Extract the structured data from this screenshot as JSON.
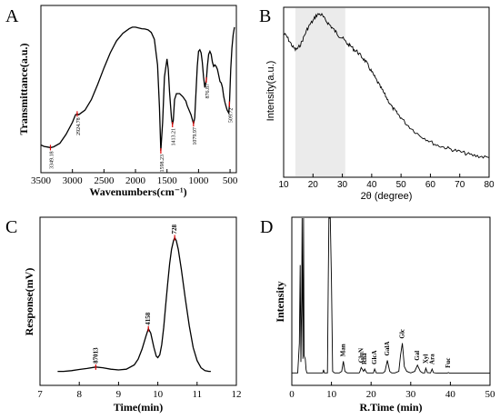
{
  "chart_data": [
    {
      "panel": "A",
      "type": "line",
      "xlabel": "Wavenumbers(cm⁻¹)",
      "ylabel": "Transmittance(a.u.)",
      "xlim": [
        3500,
        400
      ],
      "x_ticks": [
        3500,
        3000,
        2500,
        2000,
        1500,
        1000,
        500
      ],
      "x": [
        3550,
        3450,
        3400,
        3349,
        3300,
        3200,
        3100,
        3000,
        2950,
        2924,
        2900,
        2800,
        2700,
        2600,
        2500,
        2400,
        2300,
        2200,
        2100,
        2050,
        2000,
        1950,
        1900,
        1850,
        1800,
        1750,
        1700,
        1650,
        1620,
        1598,
        1570,
        1540,
        1500,
        1480,
        1460,
        1430,
        1413,
        1400,
        1380,
        1350,
        1300,
        1250,
        1200,
        1180,
        1150,
        1120,
        1100,
        1079,
        1060,
        1040,
        1020,
        1000,
        980,
        960,
        940,
        920,
        900,
        876,
        860,
        840,
        820,
        800,
        780,
        760,
        740,
        720,
        700,
        680,
        660,
        640,
        620,
        600,
        580,
        560,
        545,
        520,
        509,
        490,
        470,
        450,
        430
      ],
      "y": [
        10,
        9,
        8.6,
        8.2,
        8.7,
        11,
        17,
        25,
        30,
        30.5,
        30,
        33,
        40,
        50,
        61,
        71,
        79,
        84,
        87,
        88,
        88,
        87.5,
        87,
        86.8,
        86.2,
        84.5,
        80,
        63,
        35,
        6,
        25,
        55,
        67,
        60,
        45,
        28,
        23.5,
        26,
        40,
        44,
        44,
        42,
        39,
        36,
        33,
        30,
        27,
        24,
        28,
        45,
        62,
        72,
        73,
        71,
        65,
        55,
        48,
        53,
        62,
        70,
        72,
        70,
        65,
        62,
        63,
        62,
        60,
        56,
        52,
        51,
        48,
        42,
        38,
        35,
        33,
        31,
        37,
        60,
        74,
        83,
        88
      ],
      "peaks": [
        {
          "x": 3349.18,
          "y": 8.2,
          "label": "3349.18"
        },
        {
          "x": 2924.78,
          "y": 30.5,
          "label": "2924.78"
        },
        {
          "x": 1598.23,
          "y": 6,
          "label": "1598.23"
        },
        {
          "x": 1413.21,
          "y": 23.5,
          "label": "1413.21"
        },
        {
          "x": 1079.97,
          "y": 24,
          "label": "1079.97"
        },
        {
          "x": 876.87,
          "y": 53,
          "label": "876.87"
        },
        {
          "x": 509.72,
          "y": 37,
          "label": "509.72"
        }
      ]
    },
    {
      "panel": "B",
      "type": "line",
      "xlabel": "2θ (degree)",
      "ylabel": "Intensity(a.u.)",
      "xlim": [
        10,
        80
      ],
      "x_ticks": [
        10,
        20,
        30,
        40,
        50,
        60,
        70,
        80
      ],
      "shaded_region": [
        14,
        31
      ],
      "x": [
        10,
        11,
        12,
        13,
        14,
        15,
        16,
        17,
        18,
        19,
        20,
        21,
        22,
        23,
        24,
        25,
        26,
        27,
        28,
        29,
        30,
        31,
        32,
        33,
        34,
        35,
        36,
        37,
        38,
        39,
        40,
        41,
        42,
        43,
        44,
        45,
        46,
        47,
        48,
        49,
        50,
        52,
        54,
        56,
        58,
        60,
        62,
        64,
        66,
        68,
        70,
        72,
        74,
        76,
        78,
        80
      ],
      "y": [
        0.845,
        0.83,
        0.8,
        0.77,
        0.75,
        0.76,
        0.79,
        0.83,
        0.87,
        0.9,
        0.92,
        0.95,
        0.96,
        0.955,
        0.93,
        0.91,
        0.89,
        0.87,
        0.85,
        0.83,
        0.82,
        0.8,
        0.78,
        0.77,
        0.75,
        0.74,
        0.72,
        0.7,
        0.68,
        0.65,
        0.62,
        0.59,
        0.56,
        0.53,
        0.5,
        0.47,
        0.44,
        0.41,
        0.39,
        0.37,
        0.35,
        0.31,
        0.28,
        0.25,
        0.23,
        0.21,
        0.19,
        0.18,
        0.17,
        0.16,
        0.15,
        0.14,
        0.13,
        0.125,
        0.12,
        0.115
      ]
    },
    {
      "panel": "C",
      "type": "line",
      "xlabel": "Time(min)",
      "ylabel": "Response(mV)",
      "xlim": [
        7,
        12
      ],
      "x_ticks": [
        7,
        8,
        9,
        10,
        11,
        12
      ],
      "x": [
        7.45,
        7.6,
        7.8,
        8.0,
        8.2,
        8.42,
        8.6,
        8.8,
        9.0,
        9.2,
        9.4,
        9.5,
        9.6,
        9.7,
        9.76,
        9.82,
        9.9,
        9.96,
        10.0,
        10.05,
        10.1,
        10.15,
        10.2,
        10.25,
        10.3,
        10.35,
        10.4,
        10.43,
        10.47,
        10.52,
        10.6,
        10.7,
        10.8,
        10.9,
        11.0,
        11.1,
        11.2,
        11.3,
        11.35
      ],
      "y": [
        0.015,
        0.015,
        0.02,
        0.028,
        0.035,
        0.045,
        0.04,
        0.03,
        0.025,
        0.03,
        0.06,
        0.1,
        0.17,
        0.26,
        0.31,
        0.28,
        0.18,
        0.12,
        0.11,
        0.13,
        0.2,
        0.32,
        0.47,
        0.62,
        0.76,
        0.86,
        0.92,
        0.94,
        0.92,
        0.86,
        0.72,
        0.52,
        0.33,
        0.18,
        0.09,
        0.04,
        0.02,
        0.015,
        0.015
      ],
      "peaks": [
        {
          "x": 8.42,
          "y": 0.045,
          "label": "87013"
        },
        {
          "x": 9.76,
          "y": 0.31,
          "label": "4158"
        },
        {
          "x": 10.43,
          "y": 0.94,
          "label": "728"
        }
      ]
    },
    {
      "panel": "D",
      "type": "line",
      "xlabel": "R.Time (min)",
      "ylabel": "Intensity",
      "xlim": [
        0,
        50
      ],
      "x_ticks": [
        0,
        10,
        20,
        30,
        40,
        50
      ],
      "x": [
        0,
        1.5,
        1.9,
        2.1,
        2.3,
        2.5,
        2.6,
        2.8,
        2.95,
        3.1,
        3.4,
        3.6,
        3.8,
        4,
        6,
        7.8,
        8,
        8.2,
        9,
        9.2,
        9.35,
        9.7,
        10.0,
        10.3,
        10.8,
        12,
        12.6,
        13.0,
        13.4,
        14,
        17,
        17.2,
        17.5,
        18.1,
        18.4,
        18.8,
        19,
        20.6,
        20.9,
        21.3,
        22,
        23,
        23.5,
        24.1,
        24.7,
        25.2,
        26,
        27,
        27.4,
        27.9,
        28.4,
        29,
        30,
        31,
        31.7,
        32.4,
        33,
        33.5,
        33.8,
        34.2,
        35,
        35.4,
        35.7,
        36.2,
        37,
        39.2,
        39.5,
        39.8,
        41,
        44,
        50
      ],
      "y": [
        0.01,
        0.01,
        0.2,
        0.7,
        0.08,
        0.5,
        1.05,
        0.1,
        1.05,
        0.12,
        0.1,
        0.03,
        0.01,
        0.01,
        0.01,
        0.01,
        0.03,
        0.01,
        0.01,
        0.6,
        1.05,
        1.05,
        0.6,
        0.02,
        0.01,
        0.01,
        0.02,
        0.085,
        0.02,
        0.01,
        0.01,
        0.02,
        0.045,
        0.02,
        0.035,
        0.015,
        0.01,
        0.01,
        0.035,
        0.01,
        0.01,
        0.01,
        0.02,
        0.09,
        0.02,
        0.01,
        0.01,
        0.02,
        0.12,
        0.2,
        0.05,
        0.02,
        0.01,
        0.02,
        0.06,
        0.02,
        0.01,
        0.01,
        0.04,
        0.012,
        0.01,
        0.035,
        0.012,
        0.01,
        0.008,
        0.008,
        0.012,
        0.008,
        0.008,
        0.008,
        0.008
      ],
      "peaks": [
        {
          "x": 13.0,
          "y": 0.085,
          "label": "Man"
        },
        {
          "x": 17.5,
          "y": 0.045,
          "label": "GluN"
        },
        {
          "x": 18.4,
          "y": 0.035,
          "label": "Rha"
        },
        {
          "x": 20.9,
          "y": 0.035,
          "label": "GlcA"
        },
        {
          "x": 24.1,
          "y": 0.09,
          "label": "GalA"
        },
        {
          "x": 27.9,
          "y": 0.2,
          "label": "Glc"
        },
        {
          "x": 31.7,
          "y": 0.06,
          "label": "Gal"
        },
        {
          "x": 33.8,
          "y": 0.04,
          "label": "Xyl"
        },
        {
          "x": 35.4,
          "y": 0.035,
          "label": "Ara"
        },
        {
          "x": 39.5,
          "y": 0.012,
          "label": "Fuc"
        }
      ]
    }
  ]
}
